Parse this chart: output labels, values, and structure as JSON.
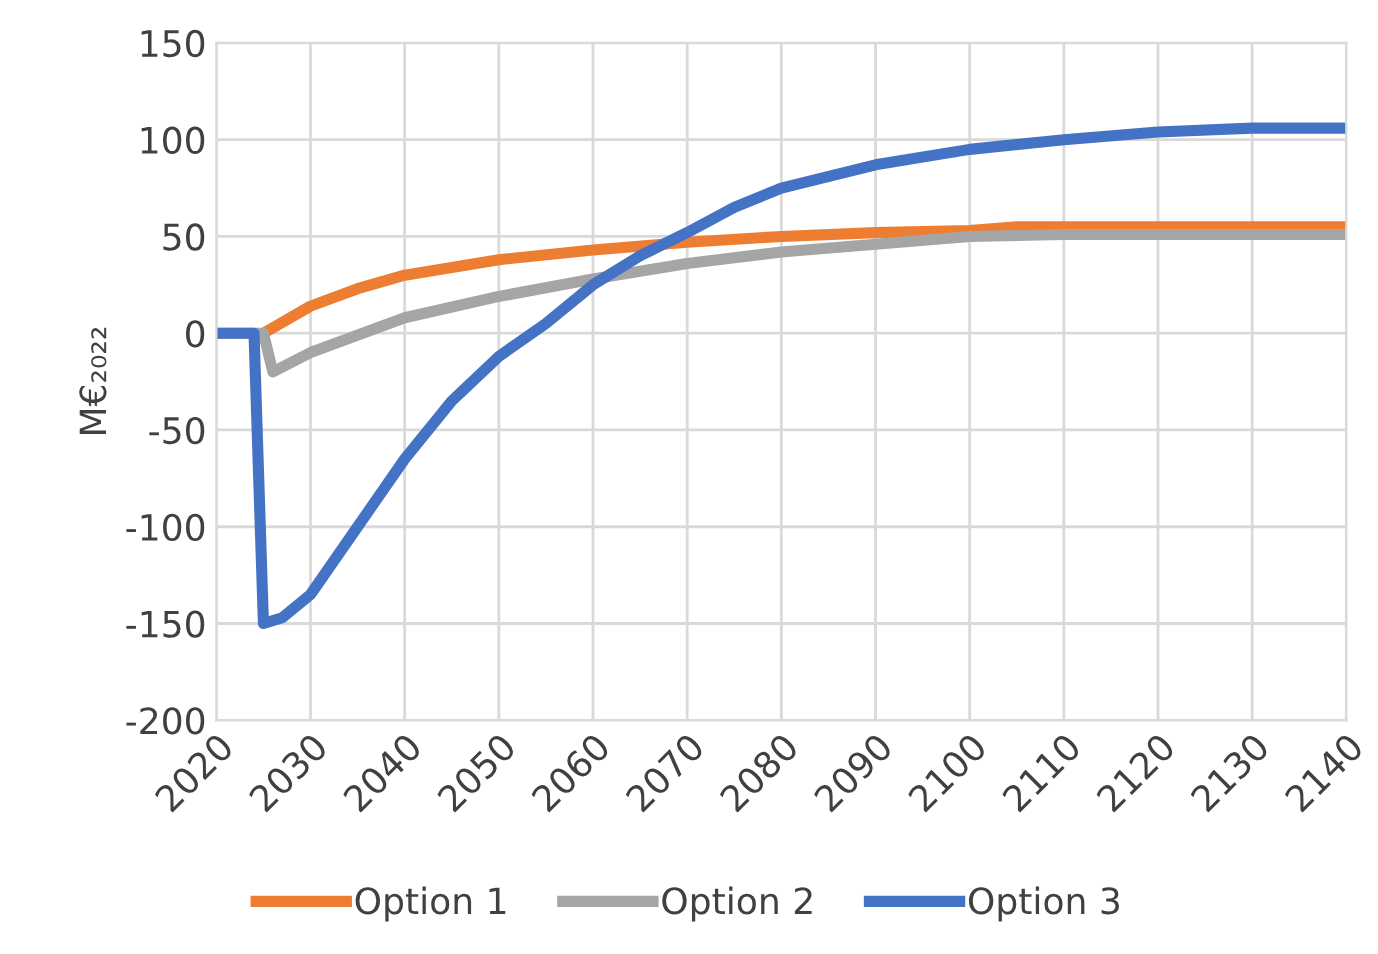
{
  "chart_data": {
    "type": "line",
    "ylabel": "M€₂₀₂₂",
    "xlim": [
      2020,
      2140
    ],
    "xticks": [
      2020,
      2030,
      2040,
      2050,
      2060,
      2070,
      2080,
      2090,
      2100,
      2110,
      2120,
      2130,
      2140
    ],
    "ylim": [
      -200,
      150
    ],
    "yticks": [
      -200,
      -150,
      -100,
      -50,
      0,
      50,
      100,
      150
    ],
    "grid": true,
    "legend": "bottom",
    "marker": "none",
    "line_style": "solid",
    "series": [
      {
        "name": "Option 1",
        "color": "#ed7d31",
        "x": [
          2025,
          2030,
          2035,
          2040,
          2050,
          2060,
          2070,
          2080,
          2090,
          2100,
          2105,
          2110,
          2140
        ],
        "values": [
          0,
          14,
          23,
          30,
          38,
          43,
          47,
          50,
          52,
          53,
          55,
          55,
          55
        ]
      },
      {
        "name": "Option 2",
        "color": "#a5a5a5",
        "x": [
          2020,
          2024,
          2025,
          2026,
          2030,
          2040,
          2050,
          2060,
          2070,
          2080,
          2090,
          2100,
          2110,
          2140
        ],
        "values": [
          0,
          0,
          0,
          -20,
          -10,
          8,
          19,
          28,
          36,
          42,
          46,
          50,
          51,
          51
        ]
      },
      {
        "name": "Option 3",
        "color": "#4472c4",
        "x": [
          2020,
          2024,
          2025,
          2027,
          2030,
          2035,
          2040,
          2045,
          2050,
          2055,
          2060,
          2065,
          2070,
          2075,
          2080,
          2090,
          2100,
          2110,
          2120,
          2130,
          2140
        ],
        "values": [
          0,
          0,
          -150,
          -147,
          -135,
          -100,
          -65,
          -35,
          -12,
          5,
          25,
          40,
          52,
          65,
          75,
          87,
          95,
          100,
          104,
          106,
          106
        ]
      }
    ]
  }
}
